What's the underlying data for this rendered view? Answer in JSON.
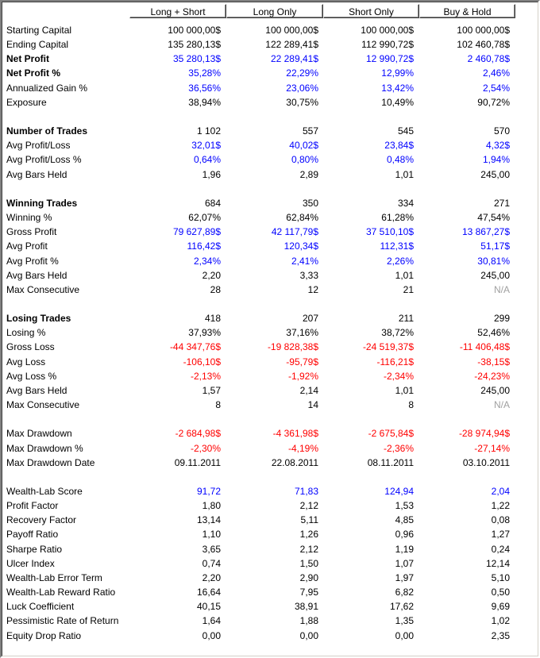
{
  "columns": [
    "Long + Short",
    "Long Only",
    "Short Only",
    "Buy & Hold"
  ],
  "colors": {
    "positive": "#0000ff",
    "negative": "#ff0000",
    "na": "#a0a0a0",
    "normal": "#000000"
  },
  "rows": [
    {
      "label": "Starting Capital",
      "bold": false,
      "values": [
        "100 000,00$",
        "100 000,00$",
        "100 000,00$",
        "100 000,00$"
      ],
      "colors": [
        "k",
        "k",
        "k",
        "k"
      ]
    },
    {
      "label": "Ending Capital",
      "bold": false,
      "values": [
        "135 280,13$",
        "122 289,41$",
        "112 990,72$",
        "102 460,78$"
      ],
      "colors": [
        "k",
        "k",
        "k",
        "k"
      ]
    },
    {
      "label": "Net Profit",
      "bold": true,
      "values": [
        "35 280,13$",
        "22 289,41$",
        "12 990,72$",
        "2 460,78$"
      ],
      "colors": [
        "b",
        "b",
        "b",
        "b"
      ]
    },
    {
      "label": "Net Profit %",
      "bold": true,
      "values": [
        "35,28%",
        "22,29%",
        "12,99%",
        "2,46%"
      ],
      "colors": [
        "b",
        "b",
        "b",
        "b"
      ]
    },
    {
      "label": "Annualized Gain %",
      "bold": false,
      "values": [
        "36,56%",
        "23,06%",
        "13,42%",
        "2,54%"
      ],
      "colors": [
        "b",
        "b",
        "b",
        "b"
      ]
    },
    {
      "label": "Exposure",
      "bold": false,
      "values": [
        "38,94%",
        "30,75%",
        "10,49%",
        "90,72%"
      ],
      "colors": [
        "k",
        "k",
        "k",
        "k"
      ]
    },
    {
      "blank": true
    },
    {
      "label": "Number of Trades",
      "bold": true,
      "values": [
        "1 102",
        "557",
        "545",
        "570"
      ],
      "colors": [
        "k",
        "k",
        "k",
        "k"
      ]
    },
    {
      "label": "Avg Profit/Loss",
      "bold": false,
      "values": [
        "32,01$",
        "40,02$",
        "23,84$",
        "4,32$"
      ],
      "colors": [
        "b",
        "b",
        "b",
        "b"
      ]
    },
    {
      "label": "Avg Profit/Loss %",
      "bold": false,
      "values": [
        "0,64%",
        "0,80%",
        "0,48%",
        "1,94%"
      ],
      "colors": [
        "b",
        "b",
        "b",
        "b"
      ]
    },
    {
      "label": "Avg Bars Held",
      "bold": false,
      "values": [
        "1,96",
        "2,89",
        "1,01",
        "245,00"
      ],
      "colors": [
        "k",
        "k",
        "k",
        "k"
      ]
    },
    {
      "blank": true
    },
    {
      "label": "Winning Trades",
      "bold": true,
      "values": [
        "684",
        "350",
        "334",
        "271"
      ],
      "colors": [
        "k",
        "k",
        "k",
        "k"
      ]
    },
    {
      "label": "Winning %",
      "bold": false,
      "values": [
        "62,07%",
        "62,84%",
        "61,28%",
        "47,54%"
      ],
      "colors": [
        "k",
        "k",
        "k",
        "k"
      ]
    },
    {
      "label": "Gross Profit",
      "bold": false,
      "values": [
        "79 627,89$",
        "42 117,79$",
        "37 510,10$",
        "13 867,27$"
      ],
      "colors": [
        "b",
        "b",
        "b",
        "b"
      ]
    },
    {
      "label": "Avg Profit",
      "bold": false,
      "values": [
        "116,42$",
        "120,34$",
        "112,31$",
        "51,17$"
      ],
      "colors": [
        "b",
        "b",
        "b",
        "b"
      ]
    },
    {
      "label": "Avg Profit %",
      "bold": false,
      "values": [
        "2,34%",
        "2,41%",
        "2,26%",
        "30,81%"
      ],
      "colors": [
        "b",
        "b",
        "b",
        "b"
      ]
    },
    {
      "label": "Avg Bars Held",
      "bold": false,
      "values": [
        "2,20",
        "3,33",
        "1,01",
        "245,00"
      ],
      "colors": [
        "k",
        "k",
        "k",
        "k"
      ]
    },
    {
      "label": "Max Consecutive",
      "bold": false,
      "values": [
        "28",
        "12",
        "21",
        "N/A"
      ],
      "colors": [
        "k",
        "k",
        "k",
        "g"
      ]
    },
    {
      "blank": true
    },
    {
      "label": "Losing Trades",
      "bold": true,
      "values": [
        "418",
        "207",
        "211",
        "299"
      ],
      "colors": [
        "k",
        "k",
        "k",
        "k"
      ]
    },
    {
      "label": "Losing %",
      "bold": false,
      "values": [
        "37,93%",
        "37,16%",
        "38,72%",
        "52,46%"
      ],
      "colors": [
        "k",
        "k",
        "k",
        "k"
      ]
    },
    {
      "label": "Gross Loss",
      "bold": false,
      "values": [
        "-44 347,76$",
        "-19 828,38$",
        "-24 519,37$",
        "-11 406,48$"
      ],
      "colors": [
        "r",
        "r",
        "r",
        "r"
      ]
    },
    {
      "label": "Avg Loss",
      "bold": false,
      "values": [
        "-106,10$",
        "-95,79$",
        "-116,21$",
        "-38,15$"
      ],
      "colors": [
        "r",
        "r",
        "r",
        "r"
      ]
    },
    {
      "label": "Avg Loss %",
      "bold": false,
      "values": [
        "-2,13%",
        "-1,92%",
        "-2,34%",
        "-24,23%"
      ],
      "colors": [
        "r",
        "r",
        "r",
        "r"
      ]
    },
    {
      "label": "Avg Bars Held",
      "bold": false,
      "values": [
        "1,57",
        "2,14",
        "1,01",
        "245,00"
      ],
      "colors": [
        "k",
        "k",
        "k",
        "k"
      ]
    },
    {
      "label": "Max Consecutive",
      "bold": false,
      "values": [
        "8",
        "14",
        "8",
        "N/A"
      ],
      "colors": [
        "k",
        "k",
        "k",
        "g"
      ]
    },
    {
      "blank": true
    },
    {
      "label": "Max Drawdown",
      "bold": false,
      "values": [
        "-2 684,98$",
        "-4 361,98$",
        "-2 675,84$",
        "-28 974,94$"
      ],
      "colors": [
        "r",
        "r",
        "r",
        "r"
      ]
    },
    {
      "label": "Max Drawdown %",
      "bold": false,
      "values": [
        "-2,30%",
        "-4,19%",
        "-2,36%",
        "-27,14%"
      ],
      "colors": [
        "r",
        "r",
        "r",
        "r"
      ]
    },
    {
      "label": "Max Drawdown Date",
      "bold": false,
      "values": [
        "09.11.2011",
        "22.08.2011",
        "08.11.2011",
        "03.10.2011"
      ],
      "colors": [
        "k",
        "k",
        "k",
        "k"
      ]
    },
    {
      "blank": true
    },
    {
      "label": "Wealth-Lab Score",
      "bold": false,
      "values": [
        "91,72",
        "71,83",
        "124,94",
        "2,04"
      ],
      "colors": [
        "b",
        "b",
        "b",
        "b"
      ]
    },
    {
      "label": "Profit Factor",
      "bold": false,
      "values": [
        "1,80",
        "2,12",
        "1,53",
        "1,22"
      ],
      "colors": [
        "k",
        "k",
        "k",
        "k"
      ]
    },
    {
      "label": "Recovery Factor",
      "bold": false,
      "values": [
        "13,14",
        "5,11",
        "4,85",
        "0,08"
      ],
      "colors": [
        "k",
        "k",
        "k",
        "k"
      ]
    },
    {
      "label": "Payoff Ratio",
      "bold": false,
      "values": [
        "1,10",
        "1,26",
        "0,96",
        "1,27"
      ],
      "colors": [
        "k",
        "k",
        "k",
        "k"
      ]
    },
    {
      "label": "Sharpe Ratio",
      "bold": false,
      "values": [
        "3,65",
        "2,12",
        "1,19",
        "0,24"
      ],
      "colors": [
        "k",
        "k",
        "k",
        "k"
      ]
    },
    {
      "label": "Ulcer Index",
      "bold": false,
      "values": [
        "0,74",
        "1,50",
        "1,07",
        "12,14"
      ],
      "colors": [
        "k",
        "k",
        "k",
        "k"
      ]
    },
    {
      "label": "Wealth-Lab Error Term",
      "bold": false,
      "values": [
        "2,20",
        "2,90",
        "1,97",
        "5,10"
      ],
      "colors": [
        "k",
        "k",
        "k",
        "k"
      ]
    },
    {
      "label": "Wealth-Lab Reward Ratio",
      "bold": false,
      "values": [
        "16,64",
        "7,95",
        "6,82",
        "0,50"
      ],
      "colors": [
        "k",
        "k",
        "k",
        "k"
      ]
    },
    {
      "label": "Luck Coefficient",
      "bold": false,
      "values": [
        "40,15",
        "38,91",
        "17,62",
        "9,69"
      ],
      "colors": [
        "k",
        "k",
        "k",
        "k"
      ]
    },
    {
      "label": "Pessimistic Rate of Return",
      "bold": false,
      "values": [
        "1,64",
        "1,88",
        "1,35",
        "1,02"
      ],
      "colors": [
        "k",
        "k",
        "k",
        "k"
      ]
    },
    {
      "label": "Equity Drop Ratio",
      "bold": false,
      "values": [
        "0,00",
        "0,00",
        "0,00",
        "2,35"
      ],
      "colors": [
        "k",
        "k",
        "k",
        "k"
      ]
    }
  ]
}
